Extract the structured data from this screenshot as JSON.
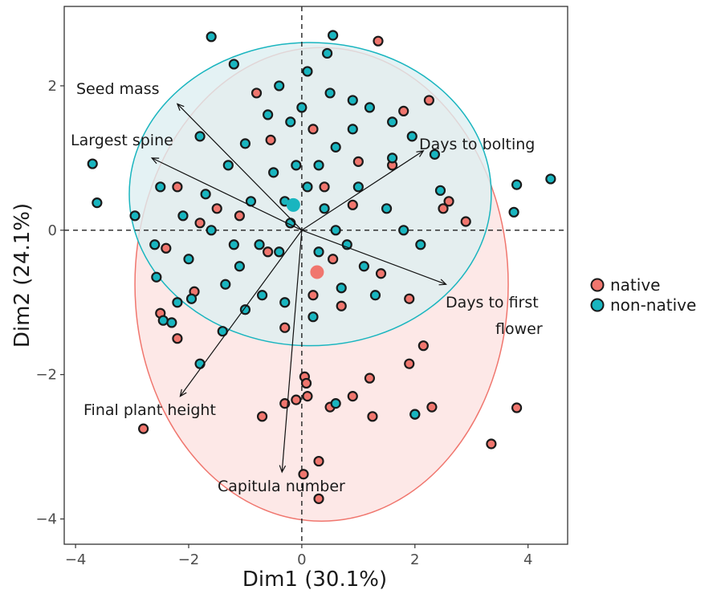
{
  "chart_data": {
    "type": "scatter",
    "subtype": "pca-biplot",
    "xlabel": "Dim1 (30.1%)",
    "ylabel": "Dim2 (24.1%)",
    "xlim": [
      -4.2,
      4.7
    ],
    "ylim": [
      -4.35,
      3.1
    ],
    "x_ticks": [
      -4,
      -2,
      0,
      2,
      4
    ],
    "y_ticks": [
      -4,
      -2,
      0,
      2
    ],
    "grid": false,
    "legend_position": "right",
    "reference_lines": {
      "x": 0,
      "y": 0,
      "style": "dashed"
    },
    "series": [
      {
        "name": "native",
        "color": "#F0766E",
        "centroid": [
          0.27,
          -0.58
        ],
        "ellipse": {
          "cx": 0.35,
          "cy": -0.75,
          "rx": 3.3,
          "ry": 3.28,
          "fill": "#FDE6E4"
        },
        "points": [
          [
            1.35,
            2.62
          ],
          [
            -2.8,
            -2.75
          ],
          [
            -0.7,
            -2.58
          ],
          [
            0.3,
            -3.72
          ],
          [
            0.03,
            -3.38
          ],
          [
            0.3,
            -3.2
          ],
          [
            -0.3,
            -2.4
          ],
          [
            -0.1,
            -2.35
          ],
          [
            0.1,
            -2.3
          ],
          [
            0.05,
            -2.03
          ],
          [
            0.08,
            -2.12
          ],
          [
            0.5,
            -2.45
          ],
          [
            0.9,
            -2.3
          ],
          [
            1.2,
            -2.05
          ],
          [
            1.25,
            -2.58
          ],
          [
            1.9,
            -1.85
          ],
          [
            2.15,
            -1.6
          ],
          [
            2.3,
            -2.45
          ],
          [
            2.0,
            -2.55
          ],
          [
            3.35,
            -2.96
          ],
          [
            3.8,
            -2.46
          ],
          [
            2.6,
            0.4
          ],
          [
            2.25,
            1.8
          ],
          [
            1.8,
            1.65
          ],
          [
            -0.8,
            1.9
          ],
          [
            -0.55,
            1.25
          ],
          [
            0.4,
            0.6
          ],
          [
            0.9,
            0.35
          ],
          [
            1.4,
            -0.6
          ],
          [
            1.9,
            -0.95
          ],
          [
            -1.5,
            0.3
          ],
          [
            -2.4,
            -0.25
          ],
          [
            -2.2,
            0.6
          ],
          [
            -1.9,
            -0.85
          ],
          [
            -0.3,
            -1.35
          ],
          [
            0.7,
            -1.05
          ],
          [
            1.0,
            0.95
          ],
          [
            -1.1,
            0.2
          ],
          [
            0.55,
            -0.4
          ],
          [
            2.5,
            0.3
          ],
          [
            -2.2,
            -1.5
          ],
          [
            1.6,
            0.9
          ],
          [
            -1.8,
            0.1
          ],
          [
            -0.6,
            -0.3
          ],
          [
            0.2,
            -0.9
          ],
          [
            2.9,
            0.12
          ],
          [
            0.2,
            1.4
          ],
          [
            -2.5,
            -1.15
          ]
        ]
      },
      {
        "name": "non-native",
        "color": "#19B5BF",
        "centroid": [
          -0.15,
          0.35
        ],
        "ellipse": {
          "cx": 0.15,
          "cy": 0.5,
          "rx": 3.2,
          "ry": 2.1,
          "fill": "#DDEFF1"
        },
        "points": [
          [
            -1.6,
            2.68
          ],
          [
            0.55,
            2.7
          ],
          [
            0.45,
            2.45
          ],
          [
            -3.7,
            0.92
          ],
          [
            -3.62,
            0.38
          ],
          [
            -2.95,
            0.2
          ],
          [
            -2.57,
            -0.65
          ],
          [
            -2.45,
            -1.25
          ],
          [
            -2.3,
            -1.28
          ],
          [
            -1.8,
            -1.85
          ],
          [
            -1.95,
            -0.95
          ],
          [
            -1.35,
            -0.75
          ],
          [
            -1.1,
            -0.5
          ],
          [
            -0.75,
            -0.2
          ],
          [
            -0.4,
            -0.3
          ],
          [
            -0.2,
            0.1
          ],
          [
            0.1,
            0.6
          ],
          [
            0.3,
            0.9
          ],
          [
            0.6,
            1.15
          ],
          [
            0.9,
            1.4
          ],
          [
            1.2,
            1.7
          ],
          [
            1.6,
            1.5
          ],
          [
            1.95,
            1.3
          ],
          [
            2.35,
            1.05
          ],
          [
            2.45,
            0.55
          ],
          [
            3.75,
            0.25
          ],
          [
            3.8,
            0.63
          ],
          [
            4.4,
            0.71
          ],
          [
            0.6,
            -2.4
          ],
          [
            2.0,
            -2.55
          ],
          [
            -1.0,
            1.2
          ],
          [
            -1.3,
            0.9
          ],
          [
            -1.7,
            0.5
          ],
          [
            -2.1,
            0.2
          ],
          [
            -0.5,
            0.8
          ],
          [
            -0.2,
            1.5
          ],
          [
            0.0,
            1.7
          ],
          [
            0.4,
            0.3
          ],
          [
            0.8,
            -0.2
          ],
          [
            1.1,
            -0.5
          ],
          [
            1.3,
            -0.9
          ],
          [
            0.7,
            -0.8
          ],
          [
            0.2,
            -1.2
          ],
          [
            -0.3,
            -1.0
          ],
          [
            -0.7,
            -0.9
          ],
          [
            -1.0,
            -1.1
          ],
          [
            -1.4,
            -1.4
          ],
          [
            -2.0,
            -0.4
          ],
          [
            -2.6,
            -0.2
          ],
          [
            -1.6,
            0.0
          ],
          [
            -0.9,
            0.4
          ],
          [
            0.5,
            1.9
          ],
          [
            0.1,
            2.2
          ],
          [
            -0.4,
            2.0
          ],
          [
            -1.2,
            2.3
          ],
          [
            1.5,
            0.3
          ],
          [
            1.8,
            0.0
          ],
          [
            2.1,
            -0.2
          ],
          [
            1.6,
            1.0
          ],
          [
            1.0,
            0.6
          ],
          [
            -0.6,
            1.6
          ],
          [
            -1.8,
            1.3
          ],
          [
            -2.5,
            0.6
          ],
          [
            -0.1,
            0.9
          ],
          [
            0.6,
            0.0
          ],
          [
            0.9,
            1.8
          ],
          [
            -0.3,
            0.4
          ],
          [
            0.3,
            -0.3
          ],
          [
            -1.2,
            -0.2
          ],
          [
            -2.2,
            -1.0
          ]
        ]
      }
    ],
    "loadings": [
      {
        "label": "Seed mass",
        "x": -2.2,
        "y": 1.75
      },
      {
        "label": "Largest spine",
        "x": -2.65,
        "y": 1.0
      },
      {
        "label": "Days to bolting",
        "x": 2.15,
        "y": 1.1
      },
      {
        "label": "Days to first",
        "label2": "flower",
        "x": 2.55,
        "y": -0.75
      },
      {
        "label": "Final plant height",
        "x": -2.15,
        "y": -2.3
      },
      {
        "label": "Capitula number",
        "x": -0.35,
        "y": -3.35
      }
    ]
  }
}
